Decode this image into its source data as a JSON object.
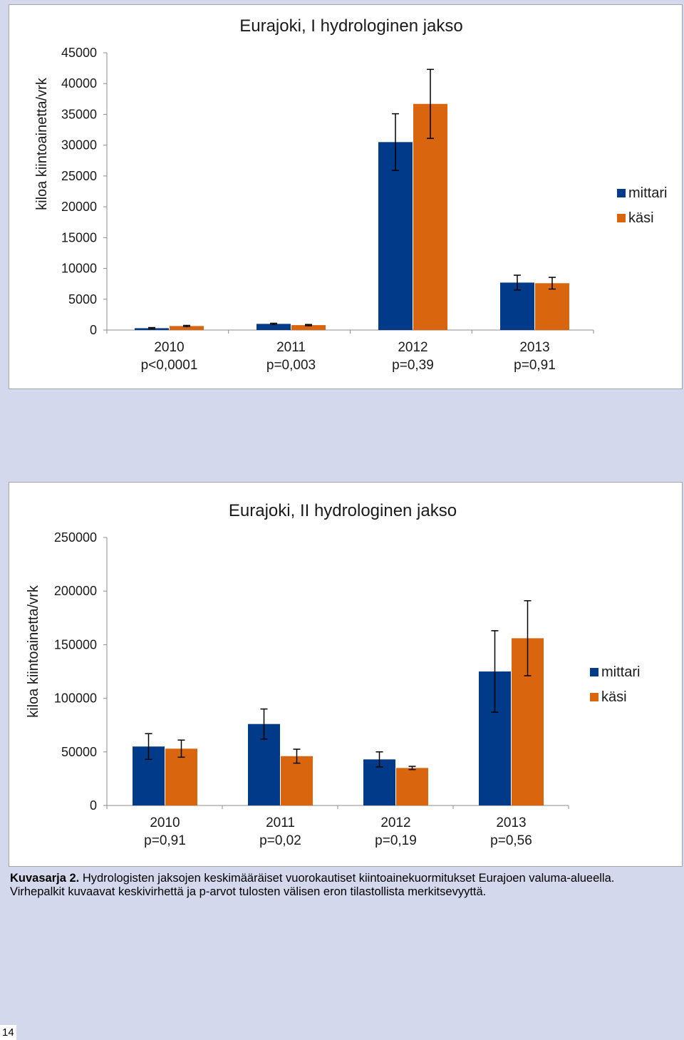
{
  "colors": {
    "mittari": "#003a88",
    "kasi": "#d9650f",
    "background": "#d4d8ec"
  },
  "chart_data": [
    {
      "type": "bar",
      "title": "Eurajoki, I hydrologinen jakso",
      "ylabel": "kiloa kiintoainetta/vrk",
      "xlabel": "",
      "ylim": [
        0,
        45000
      ],
      "yticks": [
        "0",
        "5000",
        "10000",
        "15000",
        "20000",
        "25000",
        "30000",
        "35000",
        "40000",
        "45000"
      ],
      "categories": [
        {
          "year": "2010",
          "p": "p<0,0001"
        },
        {
          "year": "2011",
          "p": "p=0,003"
        },
        {
          "year": "2012",
          "p": "p=0,39"
        },
        {
          "year": "2013",
          "p": "p=0,91"
        }
      ],
      "series": [
        {
          "name": "mittari",
          "values": [
            300,
            1000,
            30500,
            7700
          ],
          "errors": [
            100,
            100,
            4600,
            1200
          ]
        },
        {
          "name": "käsi",
          "values": [
            650,
            800,
            36700,
            7600
          ],
          "errors": [
            100,
            100,
            5600,
            950
          ]
        }
      ],
      "legend": "right",
      "grid": false
    },
    {
      "type": "bar",
      "title": "Eurajoki, II hydrologinen jakso",
      "ylabel": "kiloa kiintoainetta/vrk",
      "xlabel": "",
      "ylim": [
        0,
        250000
      ],
      "yticks": [
        "0",
        "50000",
        "100000",
        "150000",
        "200000",
        "250000"
      ],
      "categories": [
        {
          "year": "2010",
          "p": "p=0,91"
        },
        {
          "year": "2011",
          "p": "p=0,02"
        },
        {
          "year": "2012",
          "p": "p=0,19"
        },
        {
          "year": "2013",
          "p": "p=0,56"
        }
      ],
      "series": [
        {
          "name": "mittari",
          "values": [
            55000,
            76000,
            43000,
            125000
          ],
          "errors": [
            12000,
            14000,
            7000,
            38000
          ]
        },
        {
          "name": "käsi",
          "values": [
            53000,
            46000,
            35000,
            156000
          ],
          "errors": [
            8000,
            6500,
            1500,
            35000
          ]
        }
      ],
      "legend": "right",
      "grid": false
    }
  ],
  "caption": {
    "label": "Kuvasarja 2.",
    "line1": " Hydrologisten jaksojen keskimääräiset vuorokautiset kiintoainekuormitukset Eurajoen valuma-alueella.",
    "line2": "Virhepalkit kuvaavat keskivirhettä ja p-arvot tulosten välisen eron tilastollista merkitsevyyttä."
  },
  "page_number": "14"
}
